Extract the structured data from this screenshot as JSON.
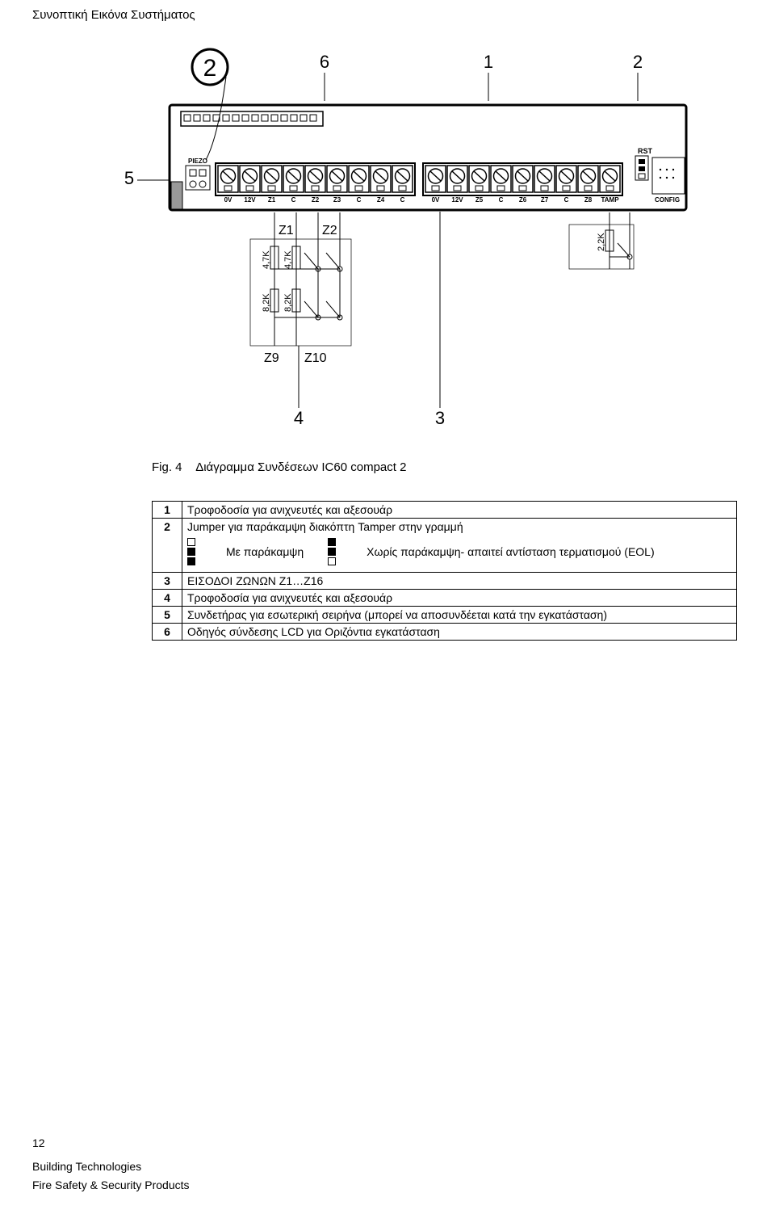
{
  "header": "Συνοπτική Εικόνα Συστήματος",
  "figure_caption_prefix": "Fig. 4",
  "figure_caption": "Διάγραμμα Συνδέσεων IC60 compact 2",
  "callouts": {
    "c1": "1",
    "c2": "2",
    "c3": "3",
    "c4": "4",
    "c5": "5",
    "c6": "6"
  },
  "diagram": {
    "big_circle_num": "2",
    "rst": "RST",
    "config": "CONFIG",
    "piezo": "PIEZO",
    "terminals": [
      "0V",
      "12V",
      "Z1",
      "C",
      "Z2",
      "Z3",
      "C",
      "Z4",
      "C",
      "0V",
      "12V",
      "Z5",
      "C",
      "Z6",
      "Z7",
      "C",
      "Z8",
      "TAMP"
    ],
    "z1": "Z1",
    "z2": "Z2",
    "z9": "Z9",
    "z10": "Z10",
    "r47": "4,7K",
    "r82": "8,2K",
    "r22": "2,2K"
  },
  "legend": {
    "r1": "Τροφοδοσία για ανιχνευτές και αξεσουάρ",
    "r2": "Jumper για παράκαμψη διακόπτη Tamper στην γραμμή",
    "r2a": "Με παράκαμψη",
    "r2b": "Χωρίς παράκαμψη- απαιτεί αντίσταση τερματισμού (EOL)",
    "r3": "ΕΙΣΟΔΟΙ ΖΩΝΩΝ Z1…Z16",
    "r4": "Τροφοδοσία για ανιχνευτές και αξεσουάρ",
    "r5": "Συνδετήρας για εσωτερική σειρήνα (μπορεί να αποσυνδέεται κατά την εγκατάσταση)",
    "r6": "Οδηγός σύνδεσης LCD για Οριζόντια εγκατάσταση"
  },
  "page_number": "12",
  "footer_line1": "Building Technologies",
  "footer_line2": "Fire Safety & Security Products"
}
